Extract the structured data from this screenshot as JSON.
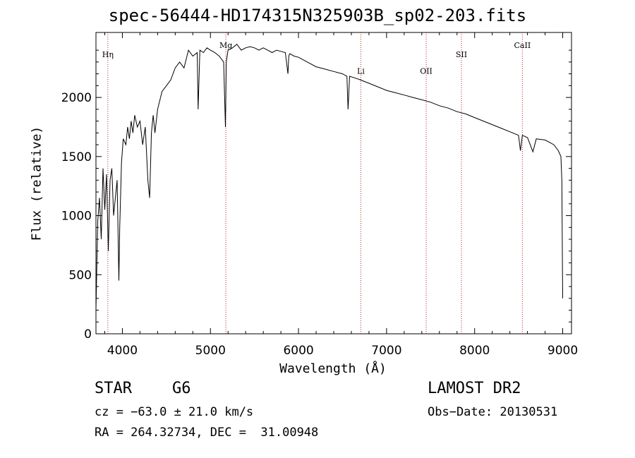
{
  "chart_data": {
    "type": "line",
    "title": "spec-56444-HD174315N325903B_sp02-203.fits",
    "xlabel": "Wavelength (Å)",
    "ylabel": "Flux (relative)",
    "xlim": [
      3700,
      9100
    ],
    "ylim": [
      0,
      2550
    ],
    "xticks": [
      4000,
      5000,
      6000,
      7000,
      8000,
      9000
    ],
    "yticks": [
      0,
      500,
      1000,
      1500,
      2000
    ],
    "line_color": "#000000",
    "marker_color": "#b22222",
    "series": [
      {
        "name": "spectrum",
        "x": [
          3700,
          3720,
          3740,
          3760,
          3780,
          3800,
          3820,
          3840,
          3860,
          3880,
          3900,
          3920,
          3940,
          3960,
          3970,
          3990,
          4010,
          4040,
          4060,
          4080,
          4100,
          4120,
          4140,
          4170,
          4200,
          4230,
          4260,
          4290,
          4310,
          4330,
          4350,
          4370,
          4400,
          4450,
          4500,
          4550,
          4600,
          4650,
          4700,
          4750,
          4800,
          4850,
          4860,
          4880,
          4920,
          4960,
          5000,
          5050,
          5100,
          5150,
          5170,
          5180,
          5200,
          5250,
          5300,
          5350,
          5400,
          5450,
          5500,
          5550,
          5600,
          5650,
          5700,
          5750,
          5800,
          5850,
          5880,
          5890,
          5900,
          5950,
          6000,
          6100,
          6200,
          6300,
          6400,
          6500,
          6550,
          6563,
          6580,
          6700,
          6800,
          6900,
          7000,
          7100,
          7200,
          7300,
          7400,
          7500,
          7600,
          7700,
          7800,
          7900,
          8000,
          8100,
          8200,
          8300,
          8400,
          8498,
          8520,
          8542,
          8600,
          8662,
          8700,
          8800,
          8850,
          8900,
          8950,
          8980,
          8990,
          9000
        ],
        "y": [
          200,
          950,
          1150,
          800,
          1400,
          1050,
          1350,
          700,
          1300,
          1400,
          1000,
          1150,
          1300,
          450,
          900,
          1450,
          1650,
          1600,
          1750,
          1650,
          1800,
          1700,
          1850,
          1750,
          1800,
          1600,
          1750,
          1300,
          1150,
          1700,
          1850,
          1700,
          1900,
          2050,
          2100,
          2150,
          2250,
          2300,
          2250,
          2400,
          2350,
          2380,
          1900,
          2400,
          2380,
          2420,
          2400,
          2380,
          2350,
          2300,
          1750,
          2300,
          2400,
          2420,
          2450,
          2400,
          2420,
          2430,
          2420,
          2400,
          2420,
          2400,
          2380,
          2400,
          2390,
          2380,
          2200,
          2350,
          2370,
          2350,
          2340,
          2300,
          2260,
          2240,
          2220,
          2200,
          2180,
          1900,
          2180,
          2150,
          2120,
          2090,
          2060,
          2040,
          2020,
          2000,
          1980,
          1960,
          1930,
          1910,
          1880,
          1860,
          1830,
          1800,
          1770,
          1740,
          1710,
          1680,
          1550,
          1680,
          1660,
          1540,
          1650,
          1640,
          1620,
          1600,
          1550,
          1500,
          1300,
          300
        ]
      }
    ],
    "lines": [
      {
        "label": "Hη",
        "x": 3835,
        "label_y": 2340
      },
      {
        "label": "Mg",
        "x": 5175,
        "label_y": 2420
      },
      {
        "label": "Li",
        "x": 6708,
        "label_y": 2200
      },
      {
        "label": "OII",
        "x": 7450,
        "label_y": 2200
      },
      {
        "label": "SII",
        "x": 7850,
        "label_y": 2340
      },
      {
        "label": "CaII",
        "x": 8542,
        "label_y": 2420
      }
    ]
  },
  "footer": {
    "star_type": "STAR",
    "subtype": "G6",
    "survey": "LAMOST DR2",
    "cz": "cz = −63.0 ± 21.0 km/s",
    "obs_date": "Obs−Date: 20130531",
    "radec": "RA = 264.32734, DEC =  31.00948"
  }
}
